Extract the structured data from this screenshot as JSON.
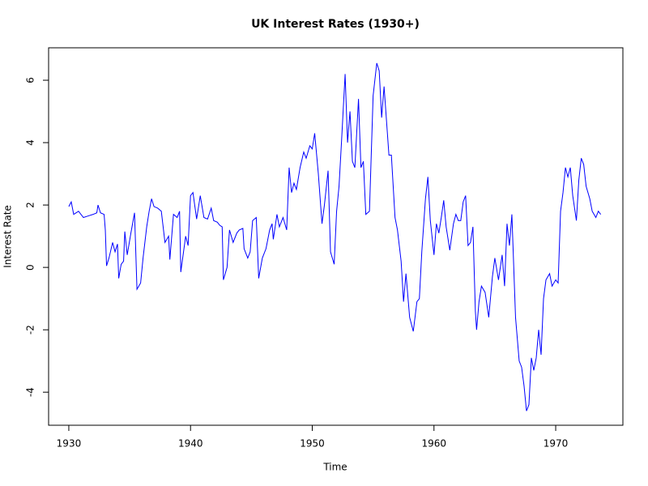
{
  "chart_data": {
    "type": "line",
    "title": "UK Interest Rates (1930+)",
    "x_label": "Time",
    "y_label": "Interest Rate",
    "x": [
      1930.0,
      1930.2,
      1930.4,
      1930.8,
      1931.2,
      1931.6,
      1932.0,
      1932.3,
      1932.4,
      1932.6,
      1932.9,
      1933.0,
      1933.1,
      1933.3,
      1933.6,
      1933.8,
      1934.0,
      1934.1,
      1934.3,
      1934.5,
      1934.6,
      1934.8,
      1935.1,
      1935.4,
      1935.6,
      1935.9,
      1936.1,
      1936.4,
      1936.6,
      1936.8,
      1937.0,
      1937.3,
      1937.6,
      1937.9,
      1938.2,
      1938.3,
      1938.6,
      1938.9,
      1939.1,
      1939.2,
      1939.6,
      1939.8,
      1940.0,
      1940.2,
      1940.5,
      1940.8,
      1941.1,
      1941.4,
      1941.7,
      1941.9,
      1942.2,
      1942.4,
      1942.6,
      1942.7,
      1943.0,
      1943.2,
      1943.5,
      1943.8,
      1944.0,
      1944.3,
      1944.4,
      1944.7,
      1944.9,
      1945.1,
      1945.4,
      1945.6,
      1945.9,
      1946.2,
      1946.5,
      1946.7,
      1946.8,
      1947.1,
      1947.3,
      1947.6,
      1947.9,
      1948.1,
      1948.3,
      1948.5,
      1948.7,
      1949.0,
      1949.3,
      1949.5,
      1949.8,
      1950.0,
      1950.2,
      1950.5,
      1950.8,
      1951.0,
      1951.3,
      1951.5,
      1951.8,
      1952.0,
      1952.2,
      1952.4,
      1952.7,
      1952.9,
      1953.1,
      1953.3,
      1953.5,
      1953.8,
      1954.0,
      1954.2,
      1954.4,
      1954.7,
      1955.0,
      1955.3,
      1955.5,
      1955.7,
      1955.9,
      1956.1,
      1956.3,
      1956.5,
      1956.8,
      1957.0,
      1957.3,
      1957.5,
      1957.7,
      1958.0,
      1958.3,
      1958.6,
      1958.8,
      1959.0,
      1959.3,
      1959.5,
      1959.7,
      1960.0,
      1960.2,
      1960.4,
      1960.6,
      1960.8,
      1961.0,
      1961.3,
      1961.6,
      1961.8,
      1962.0,
      1962.2,
      1962.4,
      1962.6,
      1962.8,
      1963.0,
      1963.2,
      1963.4,
      1963.5,
      1963.7,
      1963.9,
      1964.2,
      1964.5,
      1964.8,
      1965.0,
      1965.3,
      1965.6,
      1965.8,
      1966.0,
      1966.2,
      1966.4,
      1966.7,
      1967.0,
      1967.2,
      1967.4,
      1967.6,
      1967.8,
      1968.0,
      1968.2,
      1968.4,
      1968.6,
      1968.8,
      1969.0,
      1969.2,
      1969.5,
      1969.7,
      1970.0,
      1970.2,
      1970.4,
      1970.6,
      1970.8,
      1971.0,
      1971.2,
      1971.4,
      1971.7,
      1971.9,
      1972.1,
      1972.3,
      1972.5,
      1972.8,
      1973.0,
      1973.3,
      1973.5,
      1973.7
    ],
    "series": [
      {
        "color": "#0000ff",
        "values": [
          1.95,
          2.1,
          1.7,
          1.8,
          1.6,
          1.65,
          1.7,
          1.75,
          2.0,
          1.75,
          1.7,
          1.2,
          0.05,
          0.3,
          0.8,
          0.5,
          0.75,
          -0.35,
          0.1,
          0.2,
          1.15,
          0.4,
          1.1,
          1.75,
          -0.7,
          -0.5,
          0.3,
          1.3,
          1.8,
          2.2,
          1.95,
          1.9,
          1.8,
          0.8,
          1.0,
          0.25,
          1.7,
          1.6,
          1.8,
          -0.15,
          1.0,
          0.7,
          2.3,
          2.4,
          1.55,
          2.3,
          1.6,
          1.55,
          1.9,
          1.5,
          1.45,
          1.35,
          1.3,
          -0.4,
          0.0,
          1.2,
          0.8,
          1.1,
          1.2,
          1.25,
          0.6,
          0.3,
          0.5,
          1.5,
          1.6,
          -0.35,
          0.3,
          0.6,
          1.2,
          1.4,
          0.9,
          1.7,
          1.3,
          1.6,
          1.2,
          3.2,
          2.4,
          2.7,
          2.5,
          3.2,
          3.7,
          3.5,
          3.9,
          3.8,
          4.3,
          3.0,
          1.4,
          2.0,
          3.1,
          0.5,
          0.1,
          1.8,
          2.6,
          4.0,
          6.2,
          4.0,
          5.0,
          3.4,
          3.2,
          5.4,
          3.2,
          3.4,
          1.7,
          1.8,
          5.5,
          6.55,
          6.3,
          4.8,
          5.8,
          4.7,
          3.6,
          3.6,
          1.6,
          1.2,
          0.2,
          -1.1,
          -0.2,
          -1.6,
          -2.05,
          -1.1,
          -1.0,
          0.5,
          2.2,
          2.9,
          1.5,
          0.4,
          1.4,
          1.1,
          1.6,
          2.15,
          1.3,
          0.55,
          1.4,
          1.7,
          1.5,
          1.5,
          2.1,
          2.3,
          0.7,
          0.8,
          1.3,
          -1.4,
          -2.0,
          -1.1,
          -0.6,
          -0.8,
          -1.6,
          -0.3,
          0.3,
          -0.4,
          0.4,
          -0.6,
          1.4,
          0.7,
          1.7,
          -1.6,
          -3.0,
          -3.2,
          -3.8,
          -4.6,
          -4.4,
          -2.9,
          -3.3,
          -2.9,
          -2.0,
          -2.8,
          -1.0,
          -0.4,
          -0.2,
          -0.6,
          -0.4,
          -0.5,
          1.8,
          2.4,
          3.2,
          2.9,
          3.2,
          2.3,
          1.5,
          2.8,
          3.5,
          3.3,
          2.6,
          2.2,
          1.8,
          1.6,
          1.8,
          1.7
        ]
      }
    ],
    "xlim": [
      1928.34,
      1975.52
    ],
    "xticks": [
      1930,
      1940,
      1950,
      1960,
      1970
    ],
    "ylim": [
      -5.06,
      7.04
    ],
    "yticks": [
      -4,
      -2,
      0,
      2,
      4,
      6
    ],
    "grid": false
  }
}
